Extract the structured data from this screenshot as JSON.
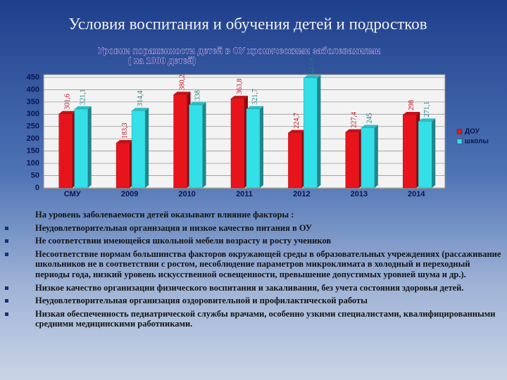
{
  "slide_title": "Условия воспитания и обучения детей и подростков",
  "chart_data": {
    "type": "bar",
    "title": "Уровни пораженности детей в ОУ хроническими заболеваниями",
    "subtitle": "( на 1000 детей)",
    "categories": [
      "СМУ",
      "2009",
      "2010",
      "2011",
      "2012",
      "2013",
      "2014"
    ],
    "series": [
      {
        "name": "ДОУ",
        "color": "#e8141c",
        "values": [
          301.6,
          183.3,
          380.2,
          363.8,
          224.7,
          227.4,
          298
        ],
        "value_labels": [
          "301,6",
          "183,3",
          "380,2",
          "363,8",
          "224,7",
          "227,4",
          "298"
        ]
      },
      {
        "name": "школы",
        "color": "#33e0e8",
        "values": [
          321.1,
          314.4,
          338,
          321.7,
          447.9,
          245,
          271.1
        ],
        "value_labels": [
          "321,1",
          "314,4",
          "338",
          "321,7",
          "447,9",
          "245",
          "271,1"
        ]
      }
    ],
    "ylim": [
      0,
      450
    ],
    "yticks": [
      0,
      50,
      100,
      150,
      200,
      250,
      300,
      350,
      400,
      450
    ],
    "grid": true,
    "legend": "right"
  },
  "text": {
    "intro": "На уровень заболеваемости детей оказывают влияние факторы :",
    "bullets": [
      "Неудовлетворительная организация и низкое качество питания в ОУ",
      "Не соответствии имеющейся школьной мебели  возрасту и росту учеников",
      "Несоответствие нормам большинства факторов окружающей среды в образовательных учреждениях (рассаживание школьников не в соответствии с ростом, несоблюдение параметров микроклимата в холодный и переходный периоды года, низкий уровень искусственной освещенности, превышение допустимых уровней шума и др.).",
      "Низкое качество организации физического воспитания и закаливания, без учета состояния здоровья детей.",
      "Неудовлетворительная организация оздоровительной и профилактической работы",
      "Низкая обеспеченность педиатрической службы врачами, особенно узкими специалистами, квалифицированными средними медицинскими работниками."
    ]
  }
}
